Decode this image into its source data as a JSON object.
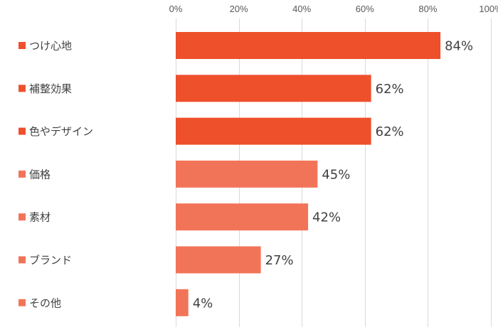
{
  "chart_data": {
    "type": "bar",
    "orientation": "horizontal",
    "title": "",
    "xlabel": "",
    "ylabel": "",
    "xlim": [
      0,
      100
    ],
    "x_ticks": [
      "0%",
      "20%",
      "40%",
      "60%",
      "80%",
      "100%"
    ],
    "x_tick_values": [
      0,
      20,
      40,
      60,
      80,
      100
    ],
    "x_axis_position": "top",
    "grid": true,
    "legend": "none",
    "value_suffix": "%",
    "categories": [
      "つけ心地",
      "補整効果",
      "色やデザイン",
      "価格",
      "素材",
      "ブランド",
      "その他"
    ],
    "values": [
      84,
      62,
      62,
      45,
      42,
      27,
      4
    ],
    "value_labels": [
      "84%",
      "62%",
      "62%",
      "45%",
      "42%",
      "27%",
      "4%"
    ],
    "colors": [
      "#ee502c",
      "#ee502c",
      "#ee502c",
      "#f27458",
      "#f27458",
      "#f27458",
      "#f27458"
    ]
  }
}
